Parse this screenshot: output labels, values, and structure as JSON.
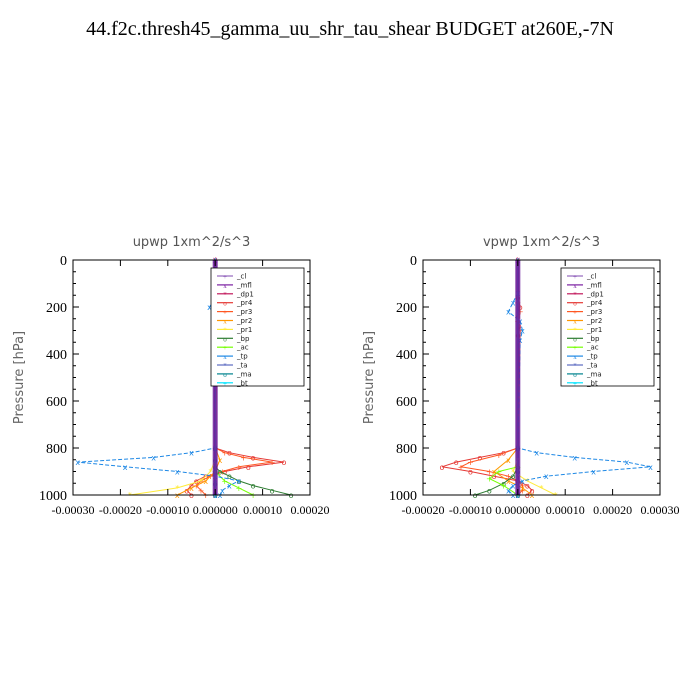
{
  "title": "44.f2c.thresh45_gamma_uu_shr_tau_shear  BUDGET at260E,-7N",
  "chart_data": [
    {
      "type": "line",
      "title": "upwp   1xm^2/s^3",
      "ylabel": "Pressure [hPa]",
      "ylim": [
        1000,
        0
      ],
      "xlim": [
        -0.0003,
        0.0002
      ],
      "yticks": [
        0,
        200,
        400,
        600,
        800,
        1000
      ],
      "xticks": [
        -0.0003,
        -0.0002,
        -0.0001,
        0.0,
        0.0001,
        0.0002
      ],
      "xtick_labels": [
        "-0.00030",
        "-0.00020",
        "-0.00010",
        "0.000000",
        "0.00010",
        "0.00020"
      ],
      "legend_position": "top-right",
      "series": [
        {
          "name": "_cl",
          "color": "#9467bd",
          "y": [
            0,
            1000
          ],
          "x": [
            0.0,
            0.0
          ]
        },
        {
          "name": "_mfl",
          "color": "#7b1fa2",
          "y": [
            0,
            1000
          ],
          "x": [
            0.0,
            0.0
          ]
        },
        {
          "name": "_dp1",
          "color": "#c2185b",
          "y": [
            0,
            1000
          ],
          "x": [
            0.0,
            0.0
          ]
        },
        {
          "name": "_pr4",
          "color": "#e53935",
          "y": [
            800,
            820,
            840,
            860,
            880,
            900,
            920,
            940,
            960,
            980,
            1000
          ],
          "x": [
            0.0,
            3e-05,
            8e-05,
            0.000145,
            7e-05,
            2e-05,
            -2e-05,
            -4e-05,
            -5e-05,
            -6e-05,
            -5e-05
          ]
        },
        {
          "name": "_pr3",
          "color": "#ff5722",
          "y": [
            180,
            200,
            220,
            240,
            800,
            820,
            840,
            860,
            880,
            900,
            920,
            940,
            960,
            980,
            1000
          ],
          "x": [
            0.0,
            5e-06,
            0.0,
            5e-06,
            0.0,
            2e-05,
            6e-05,
            0.00012,
            5e-05,
            1.5e-05,
            -1e-05,
            -3e-05,
            -4e-05,
            -3e-05,
            -2e-05
          ]
        },
        {
          "name": "_pr2",
          "color": "#ff9800",
          "y": [
            800,
            850,
            900,
            940,
            970,
            1000
          ],
          "x": [
            0.0,
            1e-05,
            0.0,
            -2e-05,
            -5e-05,
            -8e-05
          ]
        },
        {
          "name": "_pr1",
          "color": "#ffeb3b",
          "y": [
            850,
            900,
            940,
            970,
            1000
          ],
          "x": [
            0.0,
            -1e-05,
            -3e-05,
            -8e-05,
            -0.00018
          ]
        },
        {
          "name": "_bp",
          "color": "#2e7d32",
          "y": [
            880,
            900,
            920,
            940,
            960,
            980,
            1000
          ],
          "x": [
            0.0,
            1e-05,
            3e-05,
            5e-05,
            8e-05,
            0.00012,
            0.00016
          ]
        },
        {
          "name": "_ac",
          "color": "#76ff03",
          "y": [
            900,
            940,
            970,
            1000
          ],
          "x": [
            0.0,
            2e-05,
            5e-05,
            8e-05
          ]
        },
        {
          "name": "_tp",
          "color": "#1e88e5",
          "y": [
            140,
            180,
            200,
            220,
            240,
            800,
            820,
            840,
            860,
            880,
            900,
            920,
            940,
            960,
            980,
            1000
          ],
          "x": [
            0.0,
            -5e-06,
            -1.2e-05,
            -5e-06,
            0.0,
            0.0,
            -5e-05,
            -0.00013,
            -0.00029,
            -0.00019,
            -8e-05,
            0.0,
            5e-05,
            3e-05,
            1.5e-05,
            1e-05
          ]
        },
        {
          "name": "_ta",
          "color": "#5c6bc0",
          "y": [
            800,
            850,
            900,
            950,
            1000
          ],
          "x": [
            0.0,
            0.0,
            0.0,
            0.0,
            0.0
          ]
        },
        {
          "name": "_ma",
          "color": "#00838f",
          "y": [
            800,
            850,
            900,
            950,
            1000
          ],
          "x": [
            0.0,
            0.0,
            0.0,
            0.0,
            0.0
          ]
        },
        {
          "name": "_bt",
          "color": "#00e5ff",
          "y": [
            0,
            1000
          ],
          "x": [
            0.0,
            0.0
          ]
        }
      ]
    },
    {
      "type": "line",
      "title": "vpwp   1xm^2/s^3",
      "ylabel": "Pressure [hPa]",
      "ylim": [
        1000,
        0
      ],
      "xlim": [
        -0.0002,
        0.0003
      ],
      "yticks": [
        0,
        200,
        400,
        600,
        800,
        1000
      ],
      "xticks": [
        -0.0002,
        -0.0001,
        0.0,
        0.0001,
        0.0002,
        0.0003
      ],
      "xtick_labels": [
        "-0.00020",
        "-0.00010",
        "0.000000",
        "0.00010",
        "0.00020",
        "0.00030"
      ],
      "legend_position": "top-right",
      "series": [
        {
          "name": "_cl",
          "color": "#9467bd",
          "y": [
            0,
            1000
          ],
          "x": [
            0.0,
            0.0
          ]
        },
        {
          "name": "_mfl",
          "color": "#7b1fa2",
          "y": [
            0,
            1000
          ],
          "x": [
            0.0,
            0.0
          ]
        },
        {
          "name": "_dp1",
          "color": "#c2185b",
          "y": [
            0,
            1000
          ],
          "x": [
            0.0,
            0.0
          ]
        },
        {
          "name": "_pr4",
          "color": "#e53935",
          "y": [
            160,
            200,
            240,
            280,
            320,
            800,
            820,
            840,
            860,
            880,
            900,
            920,
            940,
            960,
            980,
            1000
          ],
          "x": [
            0.0,
            5e-06,
            0.0,
            3e-06,
            0.0,
            0.0,
            -3e-05,
            -8e-05,
            -0.00013,
            -0.00016,
            -0.0001,
            -5e-05,
            0.0,
            2e-05,
            3e-05,
            2e-05
          ]
        },
        {
          "name": "_pr3",
          "color": "#ff5722",
          "y": [
            180,
            220,
            260,
            300,
            800,
            830,
            860,
            880,
            900,
            920,
            940,
            960,
            980,
            1000
          ],
          "x": [
            0.0,
            5e-06,
            0.0,
            5e-06,
            0.0,
            -4e-05,
            -0.0001,
            -0.00012,
            -6e-05,
            -2e-05,
            0.0,
            1e-05,
            1e-05,
            0.0
          ]
        },
        {
          "name": "_pr2",
          "color": "#ff9800",
          "y": [
            800,
            850,
            900,
            940,
            970,
            1000
          ],
          "x": [
            0.0,
            -2e-05,
            -5e-05,
            -2e-05,
            1e-05,
            3e-05
          ]
        },
        {
          "name": "_pr1",
          "color": "#ffeb3b",
          "y": [
            850,
            900,
            940,
            970,
            1000
          ],
          "x": [
            0.0,
            -1e-05,
            2e-05,
            5e-05,
            8e-05
          ]
        },
        {
          "name": "_bp",
          "color": "#2e7d32",
          "y": [
            880,
            920,
            950,
            980,
            1000
          ],
          "x": [
            0.0,
            -1e-05,
            -3e-05,
            -6e-05,
            -9e-05
          ]
        },
        {
          "name": "_ac",
          "color": "#76ff03",
          "y": [
            880,
            900,
            930,
            960,
            1000
          ],
          "x": [
            0.0,
            -4e-05,
            -6e-05,
            -3e-05,
            0.0
          ]
        },
        {
          "name": "_tp",
          "color": "#1e88e5",
          "y": [
            140,
            180,
            220,
            260,
            300,
            340,
            800,
            820,
            840,
            860,
            880,
            900,
            920,
            940,
            960,
            980,
            1000
          ],
          "x": [
            0.0,
            -1e-05,
            -2e-05,
            5e-06,
            1e-05,
            5e-06,
            0.0,
            4e-05,
            0.00012,
            0.00023,
            0.00028,
            0.00016,
            6e-05,
            1e-05,
            -1e-05,
            -2e-05,
            -1e-05
          ]
        },
        {
          "name": "_ta",
          "color": "#5c6bc0",
          "y": [
            800,
            900,
            1000
          ],
          "x": [
            0.0,
            0.0,
            0.0
          ]
        },
        {
          "name": "_ma",
          "color": "#00838f",
          "y": [
            800,
            900,
            1000
          ],
          "x": [
            0.0,
            0.0,
            0.0
          ]
        },
        {
          "name": "_bt",
          "color": "#00e5ff",
          "y": [
            0,
            1000
          ],
          "x": [
            0.0,
            0.0
          ]
        }
      ]
    }
  ]
}
